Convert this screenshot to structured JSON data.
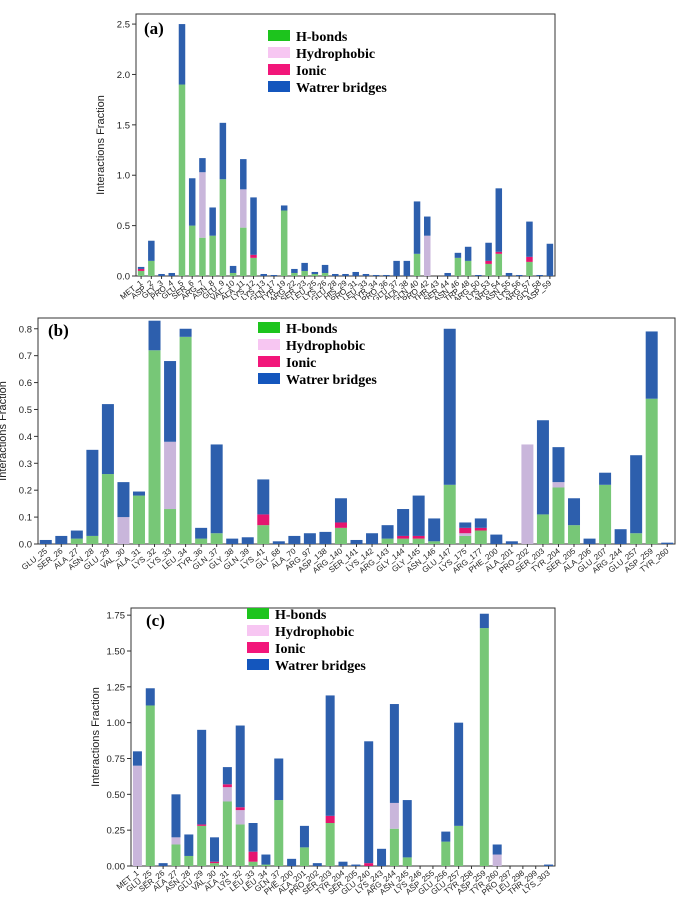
{
  "colors": {
    "hbonds": "#77c777",
    "hydrophobic": "#c9b6db",
    "ionic": "#e5156f",
    "water": "#2d5fad",
    "legend_hbonds": "#1dc41d",
    "legend_hydrophobic": "#f7c6f2",
    "legend_ionic": "#f2167a",
    "legend_water": "#1456bd"
  },
  "chart_data": [
    {
      "type": "bar",
      "stacked": true,
      "panel_label": "(a)",
      "ylabel": "Interactions Fraction",
      "ylim": [
        0,
        2.6
      ],
      "yticks": [
        "0.0",
        "0.5",
        "1.0",
        "1.5",
        "2.0",
        "2.5"
      ],
      "legend": [
        "H-bonds",
        "Hydrophobic",
        "Ionic",
        "Watrer bridges"
      ],
      "categories": [
        "MET_1",
        "ASP_2",
        "GLY_3",
        "PRO_4",
        "GLU_5",
        "SER_6",
        "ARG_7",
        "ASN_8",
        "GLU_9",
        "VAL_10",
        "ALA_11",
        "LYS_12",
        "LYS_13",
        "GLN_17",
        "TYR_19",
        "ARG_22",
        "SER_23",
        "LEU_25",
        "LYS_26",
        "GLU_28",
        "HIS_29",
        "PRO_31",
        "LEU_33",
        "TYR_34",
        "PRO_36",
        "GLU_37",
        "ALA_38",
        "GLN_40",
        "PRO_42",
        "THR_43",
        "SER_44",
        "ASN_46",
        "TRP_48",
        "ARG_50",
        "LYS_53",
        "ARG_54",
        "ASN_55",
        "LYS_56",
        "ARG_57",
        "GLY_58",
        "ASP_59"
      ],
      "series": [
        {
          "name": "H-bonds",
          "values": [
            0.05,
            0.15,
            0,
            0,
            1.9,
            0.5,
            0.38,
            0.4,
            0.96,
            0.03,
            0.48,
            0.18,
            0,
            0,
            0.65,
            0.03,
            0.05,
            0.02,
            0.03,
            0,
            0,
            0,
            0,
            0,
            0,
            0,
            0,
            0.22,
            0,
            0,
            0,
            0.18,
            0.15,
            0,
            0.12,
            0.22,
            0,
            0,
            0.14,
            0,
            0
          ]
        },
        {
          "name": "Hydrophobic",
          "values": [
            0,
            0,
            0,
            0,
            0,
            0,
            0.65,
            0,
            0,
            0,
            0.38,
            0,
            0,
            0,
            0,
            0,
            0,
            0,
            0,
            0,
            0,
            0,
            0,
            0,
            0,
            0,
            0,
            0,
            0.4,
            0,
            0,
            0,
            0,
            0,
            0,
            0,
            0,
            0,
            0,
            0,
            0
          ]
        },
        {
          "name": "Ionic",
          "values": [
            0.02,
            0,
            0,
            0,
            0,
            0,
            0,
            0,
            0,
            0,
            0,
            0.03,
            0,
            0,
            0,
            0,
            0,
            0,
            0,
            0,
            0,
            0,
            0,
            0,
            0,
            0,
            0,
            0,
            0,
            0,
            0,
            0,
            0,
            0,
            0.03,
            0.02,
            0,
            0,
            0.05,
            0,
            0
          ]
        },
        {
          "name": "Watrer bridges",
          "values": [
            0.02,
            0.2,
            0.02,
            0.03,
            0.6,
            0.47,
            0.14,
            0.28,
            0.56,
            0.07,
            0.3,
            0.57,
            0.02,
            0.01,
            0.05,
            0.04,
            0.08,
            0.02,
            0.08,
            0.02,
            0.02,
            0.04,
            0.02,
            0.01,
            0.01,
            0.15,
            0.15,
            0.52,
            0.19,
            0,
            0.03,
            0.05,
            0.14,
            0.01,
            0.18,
            0.63,
            0.03,
            0.01,
            0.35,
            0.01,
            0.32
          ]
        }
      ]
    },
    {
      "type": "bar",
      "stacked": true,
      "panel_label": "(b)",
      "ylabel": "Interactions Fraction",
      "ylim": [
        0,
        0.84
      ],
      "yticks": [
        "0.0",
        "0.1",
        "0.2",
        "0.3",
        "0.4",
        "0.5",
        "0.6",
        "0.7",
        "0.8"
      ],
      "legend": [
        "H-bonds",
        "Hydrophobic",
        "Ionic",
        "Watrer bridges"
      ],
      "categories": [
        "GLU_25",
        "SER_26",
        "ALA_27",
        "ASN_28",
        "GLU_29",
        "VAL_30",
        "ALA_31",
        "LYS_32",
        "LYS_33",
        "LEU_34",
        "TYR_36",
        "GLN_37",
        "GLY_38",
        "GLN_39",
        "LYS_41",
        "GLY_68",
        "ALA_70",
        "ARG_97",
        "ASP_138",
        "ARG_140",
        "SER_141",
        "LYS_142",
        "ARG_143",
        "GLY_144",
        "GLY_145",
        "ASN_146",
        "GLU_147",
        "LYS_175",
        "ARG_177",
        "PHE_200",
        "ALA_201",
        "PRO_202",
        "SER_203",
        "TYR_204",
        "SER_205",
        "ALA_206",
        "GLU_207",
        "ARG_244",
        "GLU_257",
        "ASP_259",
        "TYR_260"
      ],
      "series": [
        {
          "name": "H-bonds",
          "values": [
            0,
            0,
            0.02,
            0.03,
            0.26,
            0,
            0.18,
            0.72,
            0.13,
            0.77,
            0.02,
            0.04,
            0,
            0,
            0.07,
            0,
            0,
            0,
            0,
            0.06,
            0,
            0,
            0.02,
            0.02,
            0.02,
            0.01,
            0.22,
            0.03,
            0.05,
            0,
            0,
            0,
            0.11,
            0.21,
            0.07,
            0,
            0.22,
            0,
            0.04,
            0.54,
            0
          ]
        },
        {
          "name": "Hydrophobic",
          "values": [
            0,
            0,
            0,
            0,
            0,
            0.1,
            0,
            0,
            0.25,
            0,
            0,
            0,
            0,
            0,
            0,
            0,
            0,
            0,
            0,
            0,
            0,
            0,
            0,
            0,
            0,
            0,
            0,
            0.01,
            0,
            0,
            0,
            0.37,
            0,
            0.02,
            0,
            0,
            0,
            0,
            0,
            0,
            0
          ]
        },
        {
          "name": "Ionic",
          "values": [
            0,
            0,
            0,
            0,
            0,
            0,
            0,
            0,
            0,
            0,
            0,
            0,
            0,
            0,
            0.04,
            0,
            0,
            0,
            0,
            0.02,
            0,
            0,
            0,
            0.01,
            0.01,
            0,
            0,
            0.02,
            0.01,
            0,
            0,
            0,
            0,
            0,
            0,
            0,
            0,
            0,
            0,
            0,
            0
          ]
        },
        {
          "name": "Watrer bridges",
          "values": [
            0.015,
            0.03,
            0.03,
            0.32,
            0.26,
            0.13,
            0.015,
            0.11,
            0.3,
            0.03,
            0.04,
            0.33,
            0.02,
            0.025,
            0.13,
            0.01,
            0.03,
            0.04,
            0.045,
            0.09,
            0.015,
            0.04,
            0.05,
            0.1,
            0.15,
            0.085,
            0.58,
            0.02,
            0.035,
            0.035,
            0.01,
            0,
            0.35,
            0.13,
            0.1,
            0.02,
            0.045,
            0.055,
            0.29,
            0.25,
            0.005
          ]
        }
      ]
    },
    {
      "type": "bar",
      "stacked": true,
      "panel_label": "(c)",
      "ylabel": "Interactions Fraction",
      "ylim": [
        0,
        1.8
      ],
      "yticks": [
        "0.00",
        "0.25",
        "0.50",
        "0.75",
        "1.00",
        "1.25",
        "1.50",
        "1.75"
      ],
      "legend": [
        "H-bonds",
        "Hydrophobic",
        "Ionic",
        "Watrer bridges"
      ],
      "categories": [
        "MET_1",
        "GLU_25",
        "SER_26",
        "ALA_27",
        "ASN_28",
        "GLU_29",
        "VAL_30",
        "ALA_31",
        "LYS_32",
        "LEU_33",
        "LEU_34",
        "GLN_37",
        "PHE_200",
        "ALA_201",
        "PRO_202",
        "SER_203",
        "TYR_204",
        "SER_205",
        "GLU_240",
        "LYS_243",
        "ARG_244",
        "ASN_245",
        "LYS_246",
        "ASP_255",
        "GLU_256",
        "GLU_257",
        "TYR_258",
        "ASP_259",
        "TYR_260",
        "PRO_297",
        "LEU_298",
        "THR_299",
        "LYS_303"
      ],
      "series": [
        {
          "name": "H-bonds",
          "values": [
            0,
            1.12,
            0,
            0.15,
            0.07,
            0.28,
            0.02,
            0.45,
            0.29,
            0.03,
            0.01,
            0.46,
            0,
            0.13,
            0,
            0.3,
            0,
            0,
            0,
            0,
            0.26,
            0.06,
            0,
            0,
            0.17,
            0.28,
            0,
            1.66,
            0,
            0,
            0,
            0,
            0
          ]
        },
        {
          "name": "Hydrophobic",
          "values": [
            0.7,
            0,
            0,
            0.05,
            0,
            0,
            0,
            0.1,
            0.1,
            0,
            0,
            0,
            0,
            0,
            0,
            0,
            0,
            0,
            0,
            0,
            0.18,
            0,
            0,
            0,
            0,
            0,
            0,
            0,
            0.08,
            0,
            0,
            0,
            0
          ]
        },
        {
          "name": "Ionic",
          "values": [
            0,
            0,
            0,
            0,
            0,
            0.01,
            0.01,
            0.02,
            0.02,
            0.07,
            0,
            0,
            0,
            0,
            0,
            0.05,
            0,
            0,
            0.02,
            0,
            0,
            0,
            0,
            0,
            0,
            0,
            0,
            0,
            0,
            0,
            0,
            0,
            0
          ]
        },
        {
          "name": "Watrer bridges",
          "values": [
            0.1,
            0.12,
            0.02,
            0.3,
            0.15,
            0.66,
            0.17,
            0.12,
            0.57,
            0.2,
            0.07,
            0.29,
            0.05,
            0.15,
            0.02,
            0.84,
            0.03,
            0.01,
            0.85,
            0.12,
            0.69,
            0.4,
            0,
            0,
            0.07,
            0.72,
            0,
            0.1,
            0.07,
            0,
            0,
            0,
            0.01
          ]
        }
      ]
    }
  ]
}
